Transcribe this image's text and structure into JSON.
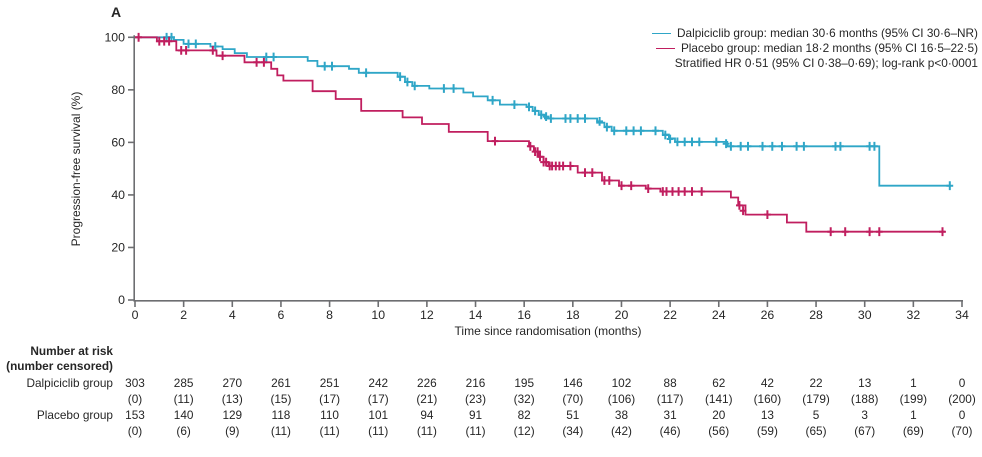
{
  "panel_label": "A",
  "colors": {
    "dalpiciclib": "#2FA6C7",
    "placebo": "#C01E5F",
    "axis": "#6D6E71",
    "text": "#262626"
  },
  "legend": {
    "entries": [
      {
        "label": "Dalpiciclib group: median 30·6 months (95% CI 30·6–NR)",
        "series": "dalpiciclib"
      },
      {
        "label": "Placebo group: median 18·2 months (95% CI 16·5–22·5)",
        "series": "placebo"
      }
    ],
    "stats_line": "Stratified HR 0·51 (95% CI 0·38–0·69); log-rank p<0·0001"
  },
  "chart_data": {
    "type": "line",
    "subtype": "kaplan-meier-step",
    "title": "",
    "xlabel": "Time since randomisation (months)",
    "ylabel": "Progression-free survival (%)",
    "xlim": [
      0,
      34
    ],
    "ylim": [
      0,
      100
    ],
    "xticks": [
      0,
      2,
      4,
      6,
      8,
      10,
      12,
      14,
      16,
      18,
      20,
      22,
      24,
      26,
      28,
      30,
      32,
      34
    ],
    "yticks": [
      0,
      20,
      40,
      60,
      80,
      100
    ],
    "grid": false,
    "legend_position": "top-right",
    "series": [
      {
        "name": "Dalpiciclib group",
        "color": "#2FA6C7",
        "median_months": "30·6",
        "median_ci": "30·6–NR",
        "steps": [
          [
            0,
            100
          ],
          [
            1.6,
            100
          ],
          [
            1.6,
            99
          ],
          [
            2.0,
            99
          ],
          [
            2.0,
            97.5
          ],
          [
            3.1,
            97.5
          ],
          [
            3.1,
            96.5
          ],
          [
            3.6,
            96.5
          ],
          [
            3.6,
            95.5
          ],
          [
            4.1,
            95.5
          ],
          [
            4.1,
            94
          ],
          [
            4.6,
            94
          ],
          [
            4.6,
            92.5
          ],
          [
            7.1,
            92.5
          ],
          [
            7.1,
            91
          ],
          [
            7.5,
            91
          ],
          [
            7.5,
            89
          ],
          [
            8.8,
            89
          ],
          [
            8.8,
            88
          ],
          [
            9.2,
            88
          ],
          [
            9.2,
            86.5
          ],
          [
            10.8,
            86.5
          ],
          [
            10.8,
            85
          ],
          [
            11.1,
            85
          ],
          [
            11.1,
            83
          ],
          [
            11.4,
            83
          ],
          [
            11.4,
            81.5
          ],
          [
            12.1,
            81.5
          ],
          [
            12.1,
            80.5
          ],
          [
            13.5,
            80.5
          ],
          [
            13.5,
            79
          ],
          [
            13.9,
            79
          ],
          [
            13.9,
            77.5
          ],
          [
            14.5,
            77.5
          ],
          [
            14.5,
            76
          ],
          [
            15.0,
            76
          ],
          [
            15.0,
            74.4
          ],
          [
            16.1,
            74.4
          ],
          [
            16.1,
            73.5
          ],
          [
            16.35,
            73.5
          ],
          [
            16.35,
            72
          ],
          [
            16.6,
            72
          ],
          [
            16.6,
            70.5
          ],
          [
            16.85,
            70.5
          ],
          [
            16.85,
            69.1
          ],
          [
            19.0,
            69.1
          ],
          [
            19.0,
            67.5
          ],
          [
            19.3,
            67.5
          ],
          [
            19.3,
            66
          ],
          [
            19.6,
            66
          ],
          [
            19.6,
            64.4
          ],
          [
            21.7,
            64.4
          ],
          [
            21.7,
            63
          ],
          [
            21.95,
            63
          ],
          [
            21.95,
            61.5
          ],
          [
            22.2,
            61.5
          ],
          [
            22.2,
            60.2
          ],
          [
            24.35,
            60.2
          ],
          [
            24.35,
            58.5
          ],
          [
            30.6,
            58.5
          ],
          [
            30.6,
            43.5
          ],
          [
            33.5,
            43.5
          ]
        ],
        "censor_marks": [
          [
            1.3,
            100
          ],
          [
            1.5,
            100
          ],
          [
            2.2,
            97.5
          ],
          [
            2.5,
            97.5
          ],
          [
            3.3,
            96.5
          ],
          [
            5.4,
            92.5
          ],
          [
            5.7,
            92.5
          ],
          [
            7.8,
            89
          ],
          [
            8.1,
            89
          ],
          [
            9.5,
            86.5
          ],
          [
            10.9,
            85
          ],
          [
            11.2,
            83
          ],
          [
            11.5,
            81.5
          ],
          [
            12.7,
            80.5
          ],
          [
            13.1,
            80.5
          ],
          [
            14.7,
            76
          ],
          [
            15.6,
            74.4
          ],
          [
            16.2,
            73.5
          ],
          [
            16.45,
            72
          ],
          [
            16.7,
            70.5
          ],
          [
            16.9,
            69.8
          ],
          [
            17.1,
            69.1
          ],
          [
            17.7,
            69.1
          ],
          [
            17.9,
            69.1
          ],
          [
            18.2,
            69.1
          ],
          [
            18.5,
            69.1
          ],
          [
            19.1,
            68
          ],
          [
            19.4,
            65.8
          ],
          [
            19.7,
            64.4
          ],
          [
            20.2,
            64.4
          ],
          [
            20.5,
            64.4
          ],
          [
            20.8,
            64.4
          ],
          [
            21.4,
            64.4
          ],
          [
            21.8,
            62.8
          ],
          [
            22.0,
            61.3
          ],
          [
            22.3,
            60.2
          ],
          [
            22.6,
            60.2
          ],
          [
            22.9,
            60.2
          ],
          [
            23.2,
            60.2
          ],
          [
            23.9,
            60.2
          ],
          [
            24.3,
            59.5
          ],
          [
            24.5,
            58.5
          ],
          [
            24.9,
            58.5
          ],
          [
            25.2,
            58.5
          ],
          [
            25.8,
            58.5
          ],
          [
            26.2,
            58.5
          ],
          [
            26.6,
            58.5
          ],
          [
            27.2,
            58.5
          ],
          [
            27.5,
            58.5
          ],
          [
            28.8,
            58.5
          ],
          [
            29.0,
            58.5
          ],
          [
            30.2,
            58.5
          ],
          [
            30.4,
            58.5
          ],
          [
            33.5,
            43.5
          ]
        ]
      },
      {
        "name": "Placebo group",
        "color": "#C01E5F",
        "median_months": "18·2",
        "median_ci": "16·5–22·5",
        "steps": [
          [
            0,
            100
          ],
          [
            0.9,
            100
          ],
          [
            0.9,
            98.5
          ],
          [
            1.7,
            98.5
          ],
          [
            1.7,
            95
          ],
          [
            3.35,
            95
          ],
          [
            3.35,
            93
          ],
          [
            4.5,
            93
          ],
          [
            4.5,
            90.5
          ],
          [
            5.6,
            90.5
          ],
          [
            5.6,
            88
          ],
          [
            5.85,
            88
          ],
          [
            5.85,
            85.5
          ],
          [
            6.1,
            85.5
          ],
          [
            6.1,
            83.5
          ],
          [
            7.3,
            83.5
          ],
          [
            7.3,
            79.5
          ],
          [
            8.25,
            79.5
          ],
          [
            8.25,
            76.5
          ],
          [
            9.3,
            76.5
          ],
          [
            9.3,
            72
          ],
          [
            11.0,
            72
          ],
          [
            11.0,
            69.5
          ],
          [
            11.8,
            69.5
          ],
          [
            11.8,
            67
          ],
          [
            12.9,
            67
          ],
          [
            12.9,
            64
          ],
          [
            14.5,
            64
          ],
          [
            14.5,
            60.5
          ],
          [
            16.2,
            60.5
          ],
          [
            16.2,
            58.5
          ],
          [
            16.4,
            58.5
          ],
          [
            16.4,
            56.5
          ],
          [
            16.6,
            56.5
          ],
          [
            16.6,
            54.5
          ],
          [
            16.8,
            54.5
          ],
          [
            16.8,
            52.5
          ],
          [
            17.0,
            52.5
          ],
          [
            17.0,
            51
          ],
          [
            18.2,
            51
          ],
          [
            18.2,
            48.5
          ],
          [
            19.2,
            48.5
          ],
          [
            19.2,
            45.5
          ],
          [
            19.9,
            45.5
          ],
          [
            19.9,
            43.5
          ],
          [
            21.0,
            43.5
          ],
          [
            21.0,
            42.4
          ],
          [
            21.6,
            42.4
          ],
          [
            21.6,
            41.3
          ],
          [
            24.5,
            41.3
          ],
          [
            24.5,
            39
          ],
          [
            24.8,
            39
          ],
          [
            24.8,
            36
          ],
          [
            25.1,
            36
          ],
          [
            25.1,
            32.5
          ],
          [
            26.8,
            32.5
          ],
          [
            26.8,
            29.5
          ],
          [
            27.6,
            29.5
          ],
          [
            27.6,
            26
          ],
          [
            33.3,
            26
          ]
        ],
        "censor_marks": [
          [
            0.15,
            100
          ],
          [
            1.0,
            98.5
          ],
          [
            1.2,
            98.5
          ],
          [
            1.4,
            98.5
          ],
          [
            1.9,
            95
          ],
          [
            2.1,
            95
          ],
          [
            3.2,
            95
          ],
          [
            3.6,
            93
          ],
          [
            5.0,
            90.5
          ],
          [
            5.3,
            90.5
          ],
          [
            14.8,
            60.5
          ],
          [
            16.25,
            58.5
          ],
          [
            16.45,
            56.5
          ],
          [
            16.55,
            56.5
          ],
          [
            16.65,
            54.5
          ],
          [
            16.8,
            52.5
          ],
          [
            16.9,
            52.5
          ],
          [
            17.05,
            51
          ],
          [
            17.15,
            51
          ],
          [
            17.3,
            51
          ],
          [
            17.45,
            51
          ],
          [
            17.6,
            51
          ],
          [
            17.9,
            51
          ],
          [
            18.5,
            48.5
          ],
          [
            18.8,
            48.5
          ],
          [
            19.3,
            45.5
          ],
          [
            19.5,
            45.5
          ],
          [
            20.0,
            43.5
          ],
          [
            20.4,
            43.5
          ],
          [
            21.1,
            42.4
          ],
          [
            21.7,
            41.3
          ],
          [
            21.85,
            41.3
          ],
          [
            22.1,
            41.3
          ],
          [
            22.35,
            41.3
          ],
          [
            22.6,
            41.3
          ],
          [
            22.9,
            41.3
          ],
          [
            23.3,
            41.3
          ],
          [
            24.85,
            36
          ],
          [
            25.0,
            34
          ],
          [
            26.0,
            32.5
          ],
          [
            28.6,
            26
          ],
          [
            29.2,
            26
          ],
          [
            30.2,
            26
          ],
          [
            30.6,
            26
          ],
          [
            33.2,
            26
          ]
        ]
      }
    ]
  },
  "risk_table": {
    "header_line1": "Number at risk",
    "header_line2": "(number censored)",
    "months": [
      0,
      2,
      4,
      6,
      8,
      10,
      12,
      14,
      16,
      18,
      20,
      22,
      24,
      26,
      28,
      30,
      32,
      34
    ],
    "rows": [
      {
        "label": "Dalpiciclib group",
        "at_risk": [
          303,
          285,
          270,
          261,
          251,
          242,
          226,
          216,
          195,
          146,
          102,
          88,
          62,
          42,
          22,
          13,
          1,
          0
        ],
        "censored": [
          0,
          11,
          13,
          15,
          17,
          17,
          21,
          23,
          32,
          70,
          106,
          117,
          141,
          160,
          179,
          188,
          199,
          200
        ]
      },
      {
        "label": "Placebo group",
        "at_risk": [
          153,
          140,
          129,
          118,
          110,
          101,
          94,
          91,
          82,
          51,
          38,
          31,
          20,
          13,
          5,
          3,
          1,
          0
        ],
        "censored": [
          0,
          6,
          9,
          11,
          11,
          11,
          11,
          11,
          12,
          34,
          42,
          46,
          56,
          59,
          65,
          67,
          69,
          70
        ]
      }
    ]
  }
}
